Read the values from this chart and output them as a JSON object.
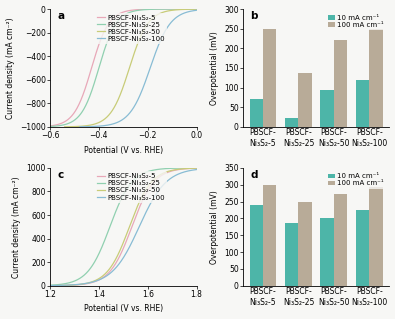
{
  "panel_a_label": "a",
  "panel_b_label": "b",
  "panel_c_label": "c",
  "panel_d_label": "d",
  "her_xlim": [
    -0.6,
    0.0
  ],
  "her_ylim": [
    -1000,
    0
  ],
  "her_xticks": [
    -0.6,
    -0.4,
    -0.2,
    0.0
  ],
  "her_yticks": [
    -1000,
    -800,
    -600,
    -400,
    -200,
    0
  ],
  "her_xlabel": "Potential (V vs. RHE)",
  "her_ylabel": "Current density (mA cm⁻²)",
  "oer_xlim": [
    1.2,
    1.8
  ],
  "oer_ylim": [
    0,
    1000
  ],
  "oer_xticks": [
    1.2,
    1.4,
    1.6,
    1.8
  ],
  "oer_yticks": [
    0,
    200,
    400,
    600,
    800,
    1000
  ],
  "oer_xlabel": "Potential (V vs. RHE)",
  "oer_ylabel": "Current density (mA cm⁻²)",
  "bar_b_ylabel": "Overpotential (mV)",
  "bar_d_ylabel": "Overpotential (mV)",
  "bar_b_ylim": [
    0,
    300
  ],
  "bar_d_ylim": [
    0,
    350
  ],
  "bar_b_yticks": [
    0,
    50,
    100,
    150,
    200,
    250,
    300
  ],
  "bar_d_yticks": [
    0,
    50,
    100,
    150,
    200,
    250,
    300,
    350
  ],
  "categories": [
    "PBSCF-\nNi₃S₂-5",
    "PBSCF-\nNi₃S₂-25",
    "PBSCF-\nNi₃S₂-50",
    "PBSCF-\nNi₃S₂-100"
  ],
  "her_bar_10": [
    70,
    22,
    93,
    120
  ],
  "her_bar_100": [
    250,
    138,
    220,
    250
  ],
  "oer_bar_10": [
    240,
    187,
    200,
    225
  ],
  "oer_bar_100": [
    300,
    248,
    273,
    292
  ],
  "her_x0s": [
    -0.43,
    -0.4,
    -0.275,
    -0.19
  ],
  "her_ks": [
    28,
    28,
    26,
    24
  ],
  "oer_x0s": [
    1.535,
    1.445,
    1.525,
    1.565
  ],
  "oer_ks": [
    22,
    22,
    22,
    18
  ],
  "color_5": "#e8a8b8",
  "color_25": "#90d0b0",
  "color_50": "#c8cc78",
  "color_100": "#88bcd4",
  "bar_teal": "#4db5a8",
  "bar_tan": "#b8ab98",
  "legend_labels": [
    "PBSCF-Ni₃S₂-5",
    "PBSCF-Ni₃S₂-25",
    "PBSCF-Ni₃S₂-50",
    "PBSCF-Ni₃S₂-100"
  ],
  "bar_legend_10": "10 mA cm⁻¹",
  "bar_legend_100": "100 mA cm⁻¹",
  "background": "#f7f7f5",
  "font_size_label": 5.5,
  "font_size_tick": 5.5,
  "font_size_legend": 5.0,
  "font_size_panel": 7.5,
  "lw": 0.9
}
